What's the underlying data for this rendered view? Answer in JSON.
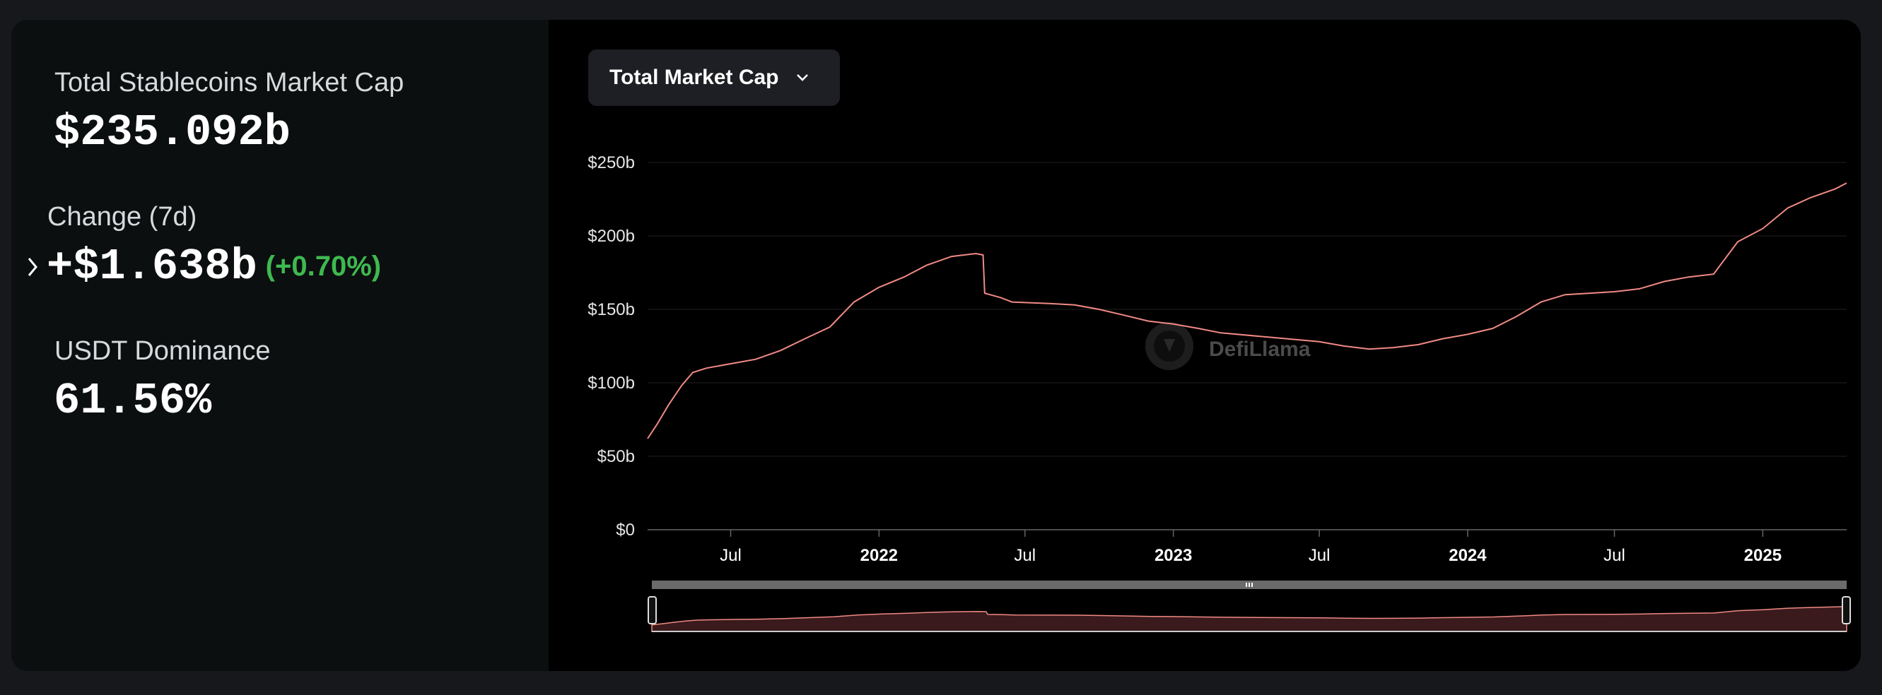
{
  "stats": {
    "total_label": "Total Stablecoins Market Cap",
    "total_value": "$235.092b",
    "change_label": "Change (7d)",
    "change_value": "+$1.638b",
    "change_pct": "(+0.70%)",
    "dominance_label": "USDT Dominance",
    "dominance_value": "61.56%"
  },
  "selector": {
    "label": "Total Market Cap"
  },
  "watermark": "DefiLlama",
  "colors": {
    "line": "#f08a84",
    "positive": "#3fb950",
    "background": "#000000",
    "panel": "#0b0f10"
  },
  "chart_data": {
    "type": "line",
    "title": "",
    "xlabel": "",
    "ylabel": "",
    "y_ticks": [
      0,
      50,
      100,
      150,
      200,
      250
    ],
    "y_tick_labels": [
      "$0",
      "$50b",
      "$100b",
      "$150b",
      "$200b",
      "$250b"
    ],
    "ylim": [
      0,
      250
    ],
    "xlim": [
      "2021-03-20",
      "2025-04-15"
    ],
    "x_ticks": [
      {
        "date": "2021-07-01",
        "label": "Jul",
        "major": false
      },
      {
        "date": "2022-01-01",
        "label": "2022",
        "major": true
      },
      {
        "date": "2022-07-01",
        "label": "Jul",
        "major": false
      },
      {
        "date": "2023-01-01",
        "label": "2023",
        "major": true
      },
      {
        "date": "2023-07-01",
        "label": "Jul",
        "major": false
      },
      {
        "date": "2024-01-01",
        "label": "2024",
        "major": true
      },
      {
        "date": "2024-07-01",
        "label": "Jul",
        "major": false
      },
      {
        "date": "2025-01-01",
        "label": "2025",
        "major": true
      }
    ],
    "grid": true,
    "legend": "none",
    "series": [
      {
        "values": [
          [
            "2021-03-20",
            62
          ],
          [
            "2021-04-01",
            72
          ],
          [
            "2021-04-15",
            85
          ],
          [
            "2021-05-01",
            98
          ],
          [
            "2021-05-15",
            107
          ],
          [
            "2021-06-01",
            110
          ],
          [
            "2021-07-01",
            113
          ],
          [
            "2021-08-01",
            116
          ],
          [
            "2021-09-01",
            122
          ],
          [
            "2021-10-01",
            130
          ],
          [
            "2021-11-01",
            138
          ],
          [
            "2021-12-01",
            155
          ],
          [
            "2022-01-01",
            165
          ],
          [
            "2022-02-01",
            172
          ],
          [
            "2022-03-01",
            180
          ],
          [
            "2022-04-01",
            186
          ],
          [
            "2022-05-01",
            188
          ],
          [
            "2022-05-10",
            187
          ],
          [
            "2022-05-12",
            161
          ],
          [
            "2022-06-01",
            158
          ],
          [
            "2022-06-15",
            155
          ],
          [
            "2022-08-01",
            154
          ],
          [
            "2022-09-01",
            153
          ],
          [
            "2022-10-01",
            150
          ],
          [
            "2022-11-01",
            146
          ],
          [
            "2022-12-01",
            142
          ],
          [
            "2023-01-01",
            140
          ],
          [
            "2023-02-01",
            137
          ],
          [
            "2023-03-01",
            134
          ],
          [
            "2023-05-01",
            131
          ],
          [
            "2023-07-01",
            128
          ],
          [
            "2023-08-01",
            125
          ],
          [
            "2023-09-01",
            123
          ],
          [
            "2023-10-01",
            124
          ],
          [
            "2023-11-01",
            126
          ],
          [
            "2023-12-01",
            130
          ],
          [
            "2024-01-01",
            133
          ],
          [
            "2024-02-01",
            137
          ],
          [
            "2024-03-01",
            145
          ],
          [
            "2024-04-01",
            155
          ],
          [
            "2024-05-01",
            160
          ],
          [
            "2024-06-01",
            161
          ],
          [
            "2024-07-01",
            162
          ],
          [
            "2024-08-01",
            164
          ],
          [
            "2024-09-01",
            169
          ],
          [
            "2024-10-01",
            172
          ],
          [
            "2024-11-01",
            174
          ],
          [
            "2024-12-01",
            196
          ],
          [
            "2025-01-01",
            205
          ],
          [
            "2025-02-01",
            219
          ],
          [
            "2025-03-01",
            226
          ],
          [
            "2025-04-01",
            232
          ],
          [
            "2025-04-15",
            236
          ]
        ]
      }
    ]
  }
}
